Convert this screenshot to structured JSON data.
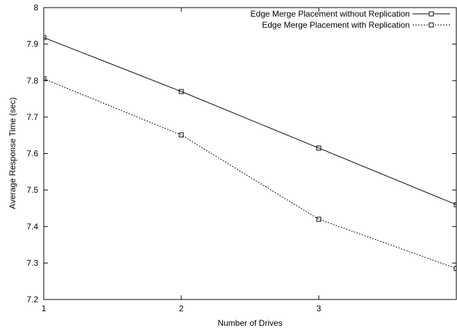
{
  "chart_data": {
    "type": "line",
    "title": "",
    "xlabel": "Number of Drives",
    "ylabel": "Average Response Time (sec)",
    "xlim": [
      1,
      4
    ],
    "ylim": [
      7.2,
      8.0
    ],
    "xticks": [
      1,
      2,
      3
    ],
    "yticks": [
      7.2,
      7.3,
      7.4,
      7.5,
      7.6,
      7.7,
      7.8,
      7.9,
      8.0
    ],
    "ytick_labels": [
      "7.2",
      "7.3",
      "7.4",
      "7.5",
      "7.6",
      "7.7",
      "7.8",
      "7.9",
      "8"
    ],
    "grid": false,
    "legend_position": "top-right",
    "series": [
      {
        "name": "Edge Merge Placement without Replication",
        "line_style": "solid",
        "marker": "square",
        "color": "#000000",
        "x": [
          1,
          2,
          3,
          4
        ],
        "values": [
          7.918,
          7.77,
          7.615,
          7.46
        ]
      },
      {
        "name": "Edge Merge Placement with Replication",
        "line_style": "dotted",
        "marker": "square",
        "color": "#000000",
        "x": [
          1,
          2,
          3,
          4
        ],
        "values": [
          7.805,
          7.651,
          7.42,
          7.285
        ]
      }
    ]
  }
}
